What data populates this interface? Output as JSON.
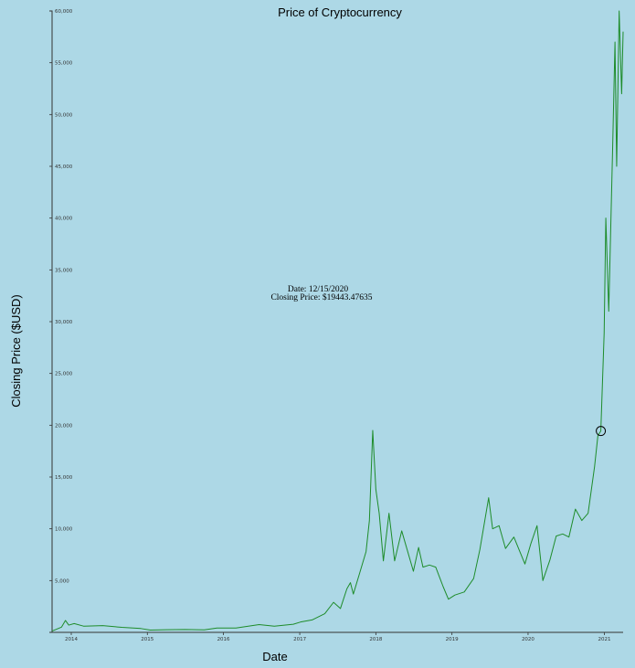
{
  "chart_data": {
    "type": "line",
    "title": "Price of Cryptocurrency",
    "xlabel": "Date",
    "ylabel": "Closing Price ($USD)",
    "ylim": [
      0,
      60000
    ],
    "xlim": [
      "2013-10-01",
      "2021-04-01"
    ],
    "grid": false,
    "line_color": "#1e8c2a",
    "y_ticks": [
      5000,
      10000,
      15000,
      20000,
      25000,
      30000,
      35000,
      40000,
      45000,
      50000,
      55000,
      60000
    ],
    "y_tick_labels": [
      "5,000",
      "10,000",
      "15,000",
      "20,000",
      "25,000",
      "30,000",
      "35,000",
      "40,000",
      "45,000",
      "50,000",
      "55,000",
      "60,000"
    ],
    "x_ticks": [
      "2014-01-01",
      "2015-01-01",
      "2016-01-01",
      "2017-01-01",
      "2018-01-01",
      "2019-01-01",
      "2020-01-01",
      "2021-01-01"
    ],
    "x_tick_labels": [
      "2014",
      "2015",
      "2016",
      "2017",
      "2018",
      "2019",
      "2020",
      "2021"
    ],
    "series": [
      {
        "x": [
          "2013-10-01",
          "2013-11-15",
          "2013-12-04",
          "2013-12-20",
          "2014-01-15",
          "2014-03-01",
          "2014-06-01",
          "2014-09-01",
          "2014-12-01",
          "2015-01-15",
          "2015-04-01",
          "2015-07-01",
          "2015-10-01",
          "2015-12-01",
          "2016-03-01",
          "2016-06-20",
          "2016-09-01",
          "2016-12-01",
          "2017-01-05",
          "2017-03-01",
          "2017-05-01",
          "2017-06-12",
          "2017-07-15",
          "2017-08-15",
          "2017-09-01",
          "2017-09-15",
          "2017-10-15",
          "2017-11-15",
          "2017-12-01",
          "2017-12-17",
          "2018-01-01",
          "2018-01-17",
          "2018-02-06",
          "2018-03-05",
          "2018-04-01",
          "2018-05-05",
          "2018-06-30",
          "2018-07-25",
          "2018-08-15",
          "2018-09-15",
          "2018-10-15",
          "2018-11-20",
          "2018-12-15",
          "2019-01-15",
          "2019-03-01",
          "2019-04-15",
          "2019-05-15",
          "2019-06-26",
          "2019-07-15",
          "2019-08-15",
          "2019-09-15",
          "2019-10-25",
          "2019-12-17",
          "2020-01-15",
          "2020-02-13",
          "2020-03-12",
          "2020-04-15",
          "2020-05-15",
          "2020-06-15",
          "2020-07-15",
          "2020-08-15",
          "2020-09-15",
          "2020-10-15",
          "2020-11-15",
          "2020-12-01",
          "2020-12-15",
          "2020-12-31",
          "2021-01-08",
          "2021-01-22",
          "2021-02-10",
          "2021-02-21",
          "2021-03-01",
          "2021-03-13",
          "2021-03-25",
          "2021-04-01"
        ],
        "y": [
          130,
          500,
          1150,
          700,
          850,
          600,
          650,
          480,
          370,
          220,
          250,
          280,
          240,
          420,
          420,
          750,
          600,
          780,
          1000,
          1200,
          1800,
          2900,
          2300,
          4200,
          4800,
          3700,
          5700,
          7800,
          10800,
          19500,
          13800,
          11500,
          6900,
          11500,
          6900,
          9800,
          5900,
          8200,
          6300,
          6500,
          6300,
          4400,
          3200,
          3600,
          3900,
          5200,
          8000,
          13000,
          10000,
          10300,
          8100,
          9200,
          6600,
          8600,
          10300,
          5000,
          7000,
          9300,
          9500,
          9200,
          11900,
          10800,
          11500,
          16000,
          19000,
          19443,
          28900,
          40000,
          31000,
          47000,
          57000,
          45000,
          60000,
          52000,
          58000
        ]
      }
    ],
    "highlight": {
      "date": "2020-12-15",
      "value": 19443.47635,
      "date_text": "Date: 12/15/2020",
      "price_text": "Closing Price: $19443.47635"
    }
  }
}
